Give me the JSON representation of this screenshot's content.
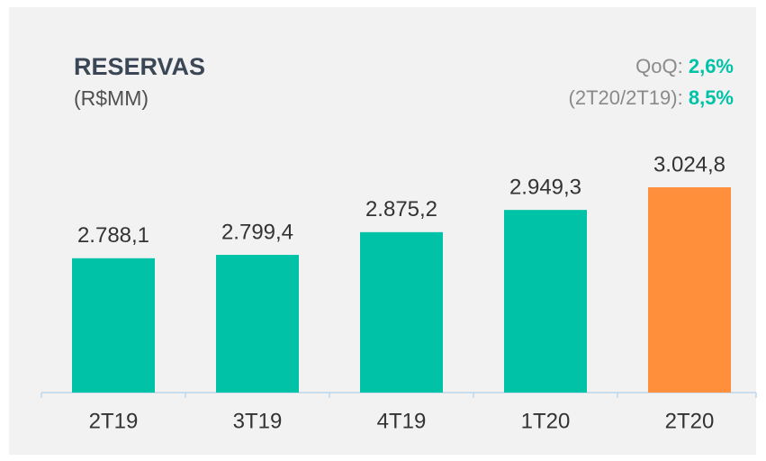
{
  "chart_data": {
    "type": "bar",
    "title": "RESERVAS",
    "subtitle": "(R$MM)",
    "annotations": [
      {
        "label": "QoQ:",
        "value": "2,6%"
      },
      {
        "label": "(2T20/2T19):",
        "value": "8,5%"
      }
    ],
    "categories": [
      "2T19",
      "3T19",
      "4T19",
      "1T20",
      "2T20"
    ],
    "values": [
      2788.1,
      2799.4,
      2875.2,
      2949.3,
      3024.8
    ],
    "value_labels": [
      "2.788,1",
      "2.799,4",
      "2.875,2",
      "2.949,3",
      "3.024,8"
    ],
    "colors": [
      "#00c2a6",
      "#00c2a6",
      "#00c2a6",
      "#00c2a6",
      "#ff8f3a"
    ],
    "ylim": [
      2340,
      3100
    ]
  }
}
